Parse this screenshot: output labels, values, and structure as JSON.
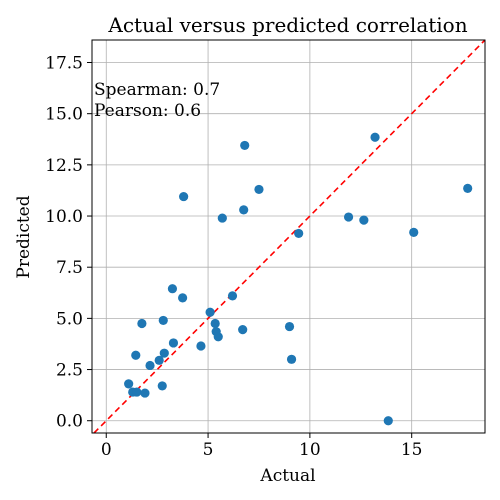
{
  "chart_data": {
    "type": "scatter",
    "title": "Actual versus predicted correlation",
    "xlabel": "Actual",
    "ylabel": "Predicted",
    "xlim": [
      -0.7,
      18.6
    ],
    "ylim": [
      -0.6,
      18.6
    ],
    "xticks": [
      0,
      5,
      10,
      15
    ],
    "xtick_labels": [
      "0",
      "5",
      "10",
      "15"
    ],
    "yticks": [
      0.0,
      2.5,
      5.0,
      7.5,
      10.0,
      12.5,
      15.0,
      17.5
    ],
    "ytick_labels": [
      "0.0",
      "2.5",
      "5.0",
      "7.5",
      "10.0",
      "12.5",
      "15.0",
      "17.5"
    ],
    "grid": true,
    "annotations": [
      "Spearman:  0.7",
      "Pearson:  0.6"
    ],
    "reference_line": {
      "type": "identity",
      "style": "dashed",
      "color": "#ff0000"
    },
    "point_color": "#1f77b4",
    "points": [
      [
        1.1,
        1.8
      ],
      [
        1.3,
        1.4
      ],
      [
        1.5,
        1.4
      ],
      [
        1.9,
        1.35
      ],
      [
        1.45,
        3.2
      ],
      [
        1.75,
        4.75
      ],
      [
        2.15,
        2.7
      ],
      [
        2.6,
        2.95
      ],
      [
        2.75,
        1.7
      ],
      [
        2.85,
        3.3
      ],
      [
        2.8,
        4.9
      ],
      [
        3.3,
        3.8
      ],
      [
        3.25,
        6.45
      ],
      [
        3.75,
        6.0
      ],
      [
        3.8,
        10.95
      ],
      [
        4.65,
        3.65
      ],
      [
        5.1,
        5.3
      ],
      [
        5.35,
        4.75
      ],
      [
        5.4,
        4.35
      ],
      [
        5.5,
        4.1
      ],
      [
        5.7,
        9.9
      ],
      [
        6.2,
        6.1
      ],
      [
        6.7,
        4.45
      ],
      [
        6.75,
        10.3
      ],
      [
        6.8,
        13.45
      ],
      [
        7.5,
        11.3
      ],
      [
        9.0,
        4.6
      ],
      [
        9.1,
        3.0
      ],
      [
        9.45,
        9.15
      ],
      [
        11.9,
        9.95
      ],
      [
        12.65,
        9.8
      ],
      [
        13.2,
        13.85
      ],
      [
        13.85,
        0.0
      ],
      [
        15.1,
        9.2
      ],
      [
        17.75,
        11.35
      ]
    ]
  }
}
